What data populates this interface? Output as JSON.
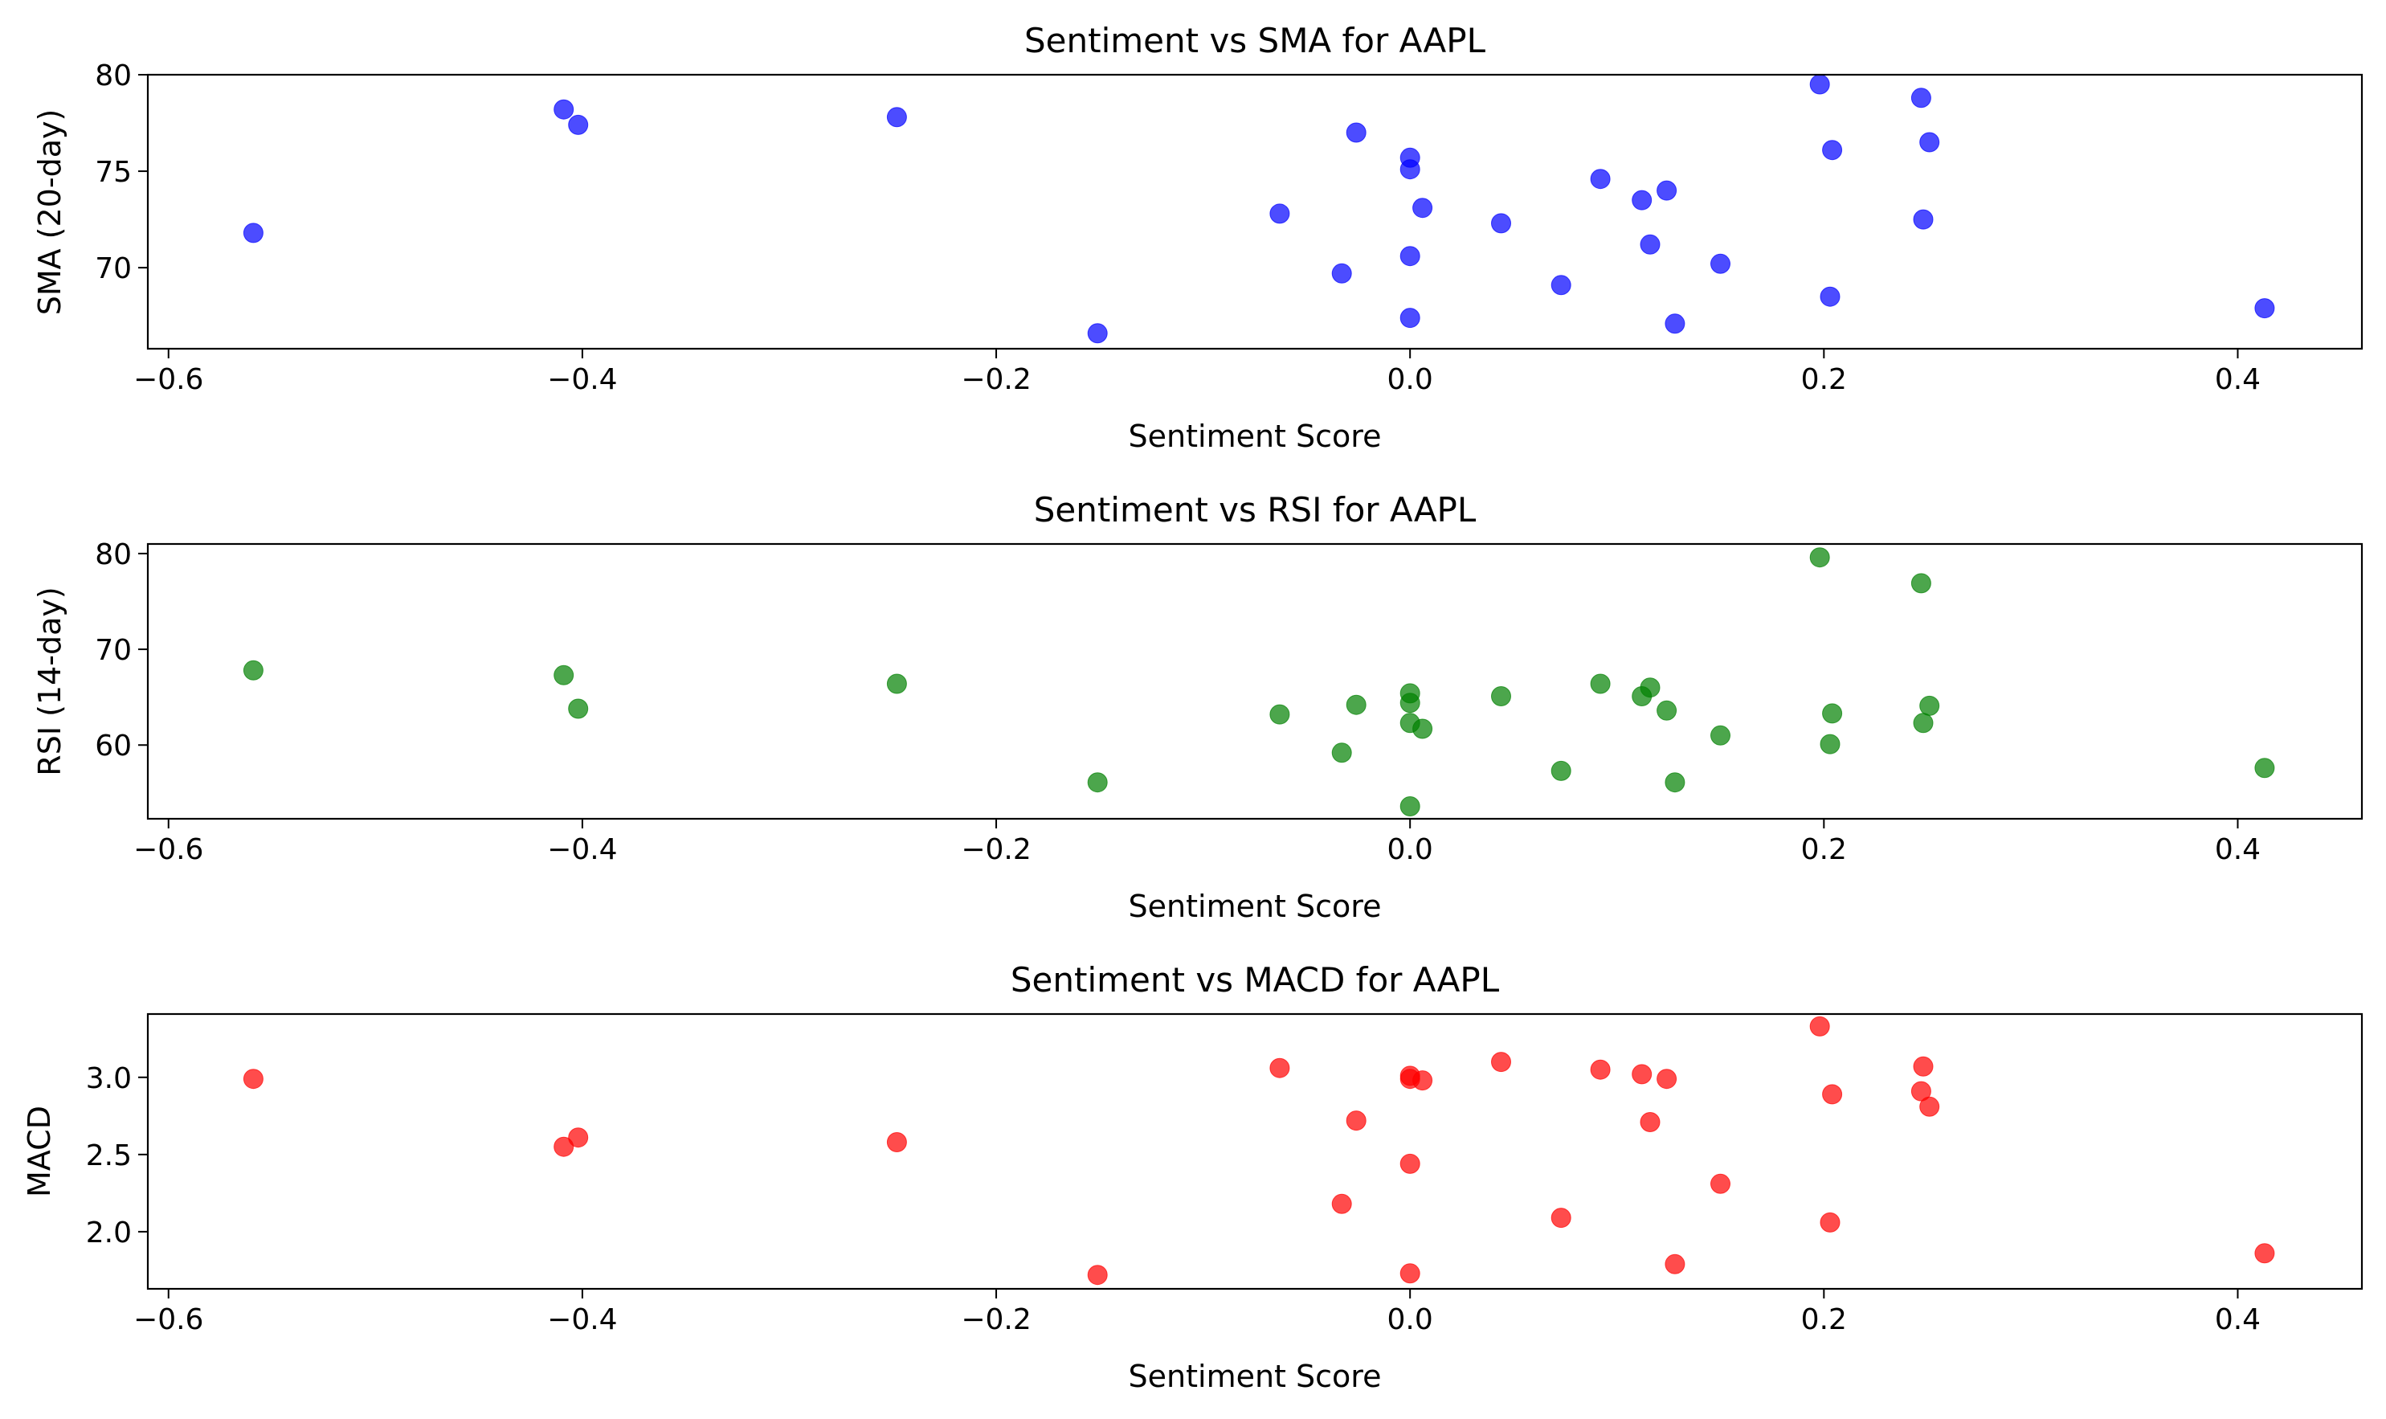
{
  "figure": {
    "background": "#ffffff"
  },
  "chart_data": [
    {
      "type": "scatter",
      "title": "Sentiment vs SMA for AAPL",
      "xlabel": "Sentiment Score",
      "ylabel": "SMA (20-day)",
      "xlim": [
        -0.61,
        0.46
      ],
      "ylim": [
        65.8,
        80.0
      ],
      "xticks": [
        -0.6,
        -0.4,
        -0.2,
        0.0,
        0.2,
        0.4
      ],
      "xtick_labels": [
        "−0.6",
        "−0.4",
        "−0.2",
        "0.0",
        "0.2",
        "0.4"
      ],
      "yticks": [
        70,
        75,
        80
      ],
      "ytick_labels": [
        "70",
        "75",
        "80"
      ],
      "grid": false,
      "color": "#0000ff",
      "alpha": 0.7,
      "points": [
        {
          "x": -0.559,
          "y": 71.8
        },
        {
          "x": -0.409,
          "y": 78.2
        },
        {
          "x": -0.402,
          "y": 77.4
        },
        {
          "x": -0.248,
          "y": 77.8
        },
        {
          "x": -0.151,
          "y": 66.6
        },
        {
          "x": -0.063,
          "y": 72.8
        },
        {
          "x": -0.033,
          "y": 69.7
        },
        {
          "x": -0.026,
          "y": 77.0
        },
        {
          "x": 0.0,
          "y": 75.7
        },
        {
          "x": 0.0,
          "y": 75.1
        },
        {
          "x": 0.0,
          "y": 70.6
        },
        {
          "x": 0.0,
          "y": 67.4
        },
        {
          "x": 0.006,
          "y": 73.1
        },
        {
          "x": 0.044,
          "y": 72.3
        },
        {
          "x": 0.073,
          "y": 69.1
        },
        {
          "x": 0.092,
          "y": 74.6
        },
        {
          "x": 0.112,
          "y": 73.5
        },
        {
          "x": 0.116,
          "y": 71.2
        },
        {
          "x": 0.124,
          "y": 74.0
        },
        {
          "x": 0.128,
          "y": 67.1
        },
        {
          "x": 0.15,
          "y": 70.2
        },
        {
          "x": 0.198,
          "y": 79.5
        },
        {
          "x": 0.203,
          "y": 68.5
        },
        {
          "x": 0.204,
          "y": 76.1
        },
        {
          "x": 0.247,
          "y": 78.8
        },
        {
          "x": 0.248,
          "y": 72.5
        },
        {
          "x": 0.251,
          "y": 76.5
        },
        {
          "x": 0.413,
          "y": 67.9
        }
      ]
    },
    {
      "type": "scatter",
      "title": "Sentiment vs RSI for AAPL",
      "xlabel": "Sentiment Score",
      "ylabel": "RSI (14-day)",
      "xlim": [
        -0.61,
        0.46
      ],
      "ylim": [
        52.3,
        81.0
      ],
      "xticks": [
        -0.6,
        -0.4,
        -0.2,
        0.0,
        0.2,
        0.4
      ],
      "xtick_labels": [
        "−0.6",
        "−0.4",
        "−0.2",
        "0.0",
        "0.2",
        "0.4"
      ],
      "yticks": [
        60,
        70,
        80
      ],
      "ytick_labels": [
        "60",
        "70",
        "80"
      ],
      "grid": false,
      "color": "#008000",
      "alpha": 0.7,
      "points": [
        {
          "x": -0.559,
          "y": 67.8
        },
        {
          "x": -0.409,
          "y": 67.3
        },
        {
          "x": -0.402,
          "y": 63.8
        },
        {
          "x": -0.248,
          "y": 66.4
        },
        {
          "x": -0.151,
          "y": 56.1
        },
        {
          "x": -0.063,
          "y": 63.2
        },
        {
          "x": -0.033,
          "y": 59.2
        },
        {
          "x": -0.026,
          "y": 64.2
        },
        {
          "x": 0.0,
          "y": 65.4
        },
        {
          "x": 0.0,
          "y": 64.4
        },
        {
          "x": 0.0,
          "y": 62.3
        },
        {
          "x": 0.0,
          "y": 53.6
        },
        {
          "x": 0.006,
          "y": 61.7
        },
        {
          "x": 0.044,
          "y": 65.1
        },
        {
          "x": 0.073,
          "y": 57.3
        },
        {
          "x": 0.092,
          "y": 66.4
        },
        {
          "x": 0.112,
          "y": 65.1
        },
        {
          "x": 0.116,
          "y": 66.0
        },
        {
          "x": 0.124,
          "y": 63.6
        },
        {
          "x": 0.128,
          "y": 56.1
        },
        {
          "x": 0.15,
          "y": 61.0
        },
        {
          "x": 0.198,
          "y": 79.6
        },
        {
          "x": 0.203,
          "y": 60.1
        },
        {
          "x": 0.204,
          "y": 63.3
        },
        {
          "x": 0.247,
          "y": 76.9
        },
        {
          "x": 0.248,
          "y": 62.3
        },
        {
          "x": 0.251,
          "y": 64.1
        },
        {
          "x": 0.413,
          "y": 57.6
        }
      ]
    },
    {
      "type": "scatter",
      "title": "Sentiment vs MACD for AAPL",
      "xlabel": "Sentiment Score",
      "ylabel": "MACD",
      "xlim": [
        -0.61,
        0.46
      ],
      "ylim": [
        1.63,
        3.41
      ],
      "xticks": [
        -0.6,
        -0.4,
        -0.2,
        0.0,
        0.2,
        0.4
      ],
      "xtick_labels": [
        "−0.6",
        "−0.4",
        "−0.2",
        "0.0",
        "0.2",
        "0.4"
      ],
      "yticks": [
        2.0,
        2.5,
        3.0
      ],
      "ytick_labels": [
        "2.0",
        "2.5",
        "3.0"
      ],
      "grid": false,
      "color": "#ff0000",
      "alpha": 0.7,
      "points": [
        {
          "x": -0.559,
          "y": 2.99
        },
        {
          "x": -0.409,
          "y": 2.55
        },
        {
          "x": -0.402,
          "y": 2.61
        },
        {
          "x": -0.248,
          "y": 2.58
        },
        {
          "x": -0.151,
          "y": 1.72
        },
        {
          "x": -0.063,
          "y": 3.06
        },
        {
          "x": -0.033,
          "y": 2.18
        },
        {
          "x": -0.026,
          "y": 2.72
        },
        {
          "x": 0.0,
          "y": 3.01
        },
        {
          "x": 0.0,
          "y": 2.99
        },
        {
          "x": 0.0,
          "y": 2.44
        },
        {
          "x": 0.0,
          "y": 1.73
        },
        {
          "x": 0.006,
          "y": 2.98
        },
        {
          "x": 0.044,
          "y": 3.1
        },
        {
          "x": 0.073,
          "y": 2.09
        },
        {
          "x": 0.092,
          "y": 3.05
        },
        {
          "x": 0.112,
          "y": 3.02
        },
        {
          "x": 0.116,
          "y": 2.71
        },
        {
          "x": 0.124,
          "y": 2.99
        },
        {
          "x": 0.128,
          "y": 1.79
        },
        {
          "x": 0.15,
          "y": 2.31
        },
        {
          "x": 0.198,
          "y": 3.33
        },
        {
          "x": 0.203,
          "y": 2.06
        },
        {
          "x": 0.204,
          "y": 2.89
        },
        {
          "x": 0.247,
          "y": 2.91
        },
        {
          "x": 0.248,
          "y": 3.07
        },
        {
          "x": 0.251,
          "y": 2.81
        },
        {
          "x": 0.413,
          "y": 1.86
        }
      ]
    }
  ]
}
